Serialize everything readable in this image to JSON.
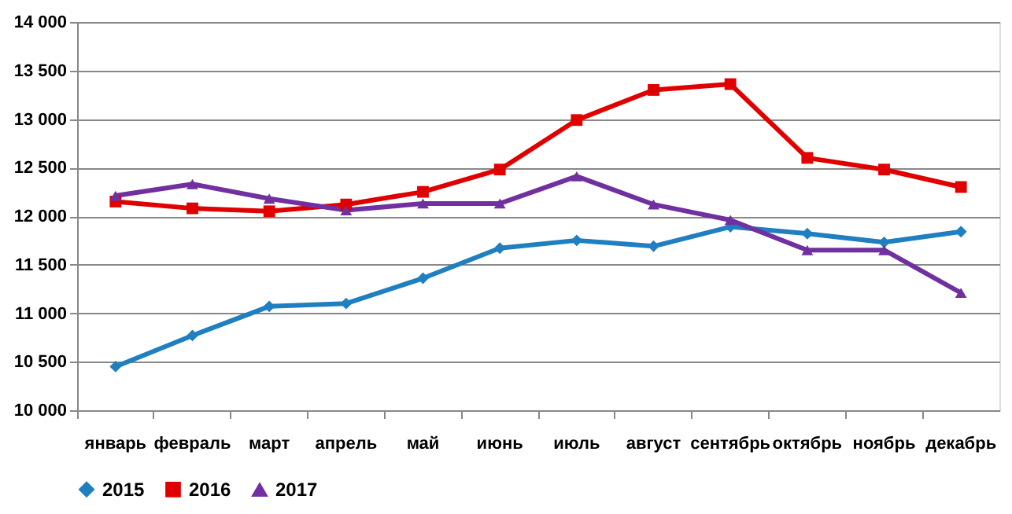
{
  "chart_data": {
    "type": "line",
    "categories": [
      "январь",
      "февраль",
      "март",
      "апрель",
      "май",
      "июнь",
      "июль",
      "август",
      "сентябрь",
      "октябрь",
      "ноябрь",
      "декабрь"
    ],
    "series": [
      {
        "name": "2015",
        "color": "#1f7fc0",
        "marker": "diamond",
        "values": [
          10450,
          10770,
          11070,
          11100,
          11360,
          11670,
          11750,
          11690,
          11890,
          11820,
          11730,
          11840
        ]
      },
      {
        "name": "2016",
        "color": "#e00000",
        "marker": "square",
        "values": [
          12150,
          12080,
          12050,
          12120,
          12250,
          12480,
          12990,
          13300,
          13360,
          12600,
          12480,
          12300
        ]
      },
      {
        "name": "2017",
        "color": "#7030a0",
        "marker": "triangle",
        "values": [
          12210,
          12330,
          12180,
          12060,
          12130,
          12130,
          12410,
          12120,
          11960,
          11650,
          11650,
          11210
        ]
      }
    ],
    "ylim": [
      10000,
      14000
    ],
    "yticks": [
      {
        "value": 10000,
        "label": "10 000"
      },
      {
        "value": 10500,
        "label": "10 500"
      },
      {
        "value": 11000,
        "label": "11 000"
      },
      {
        "value": 11500,
        "label": "11 500"
      },
      {
        "value": 12000,
        "label": "12 000"
      },
      {
        "value": 12500,
        "label": "12 500"
      },
      {
        "value": 13000,
        "label": "13 000"
      },
      {
        "value": 13500,
        "label": "13 500"
      },
      {
        "value": 14000,
        "label": "14 000"
      }
    ],
    "grid": "y",
    "legend": "bottom",
    "line_style": "solid"
  }
}
